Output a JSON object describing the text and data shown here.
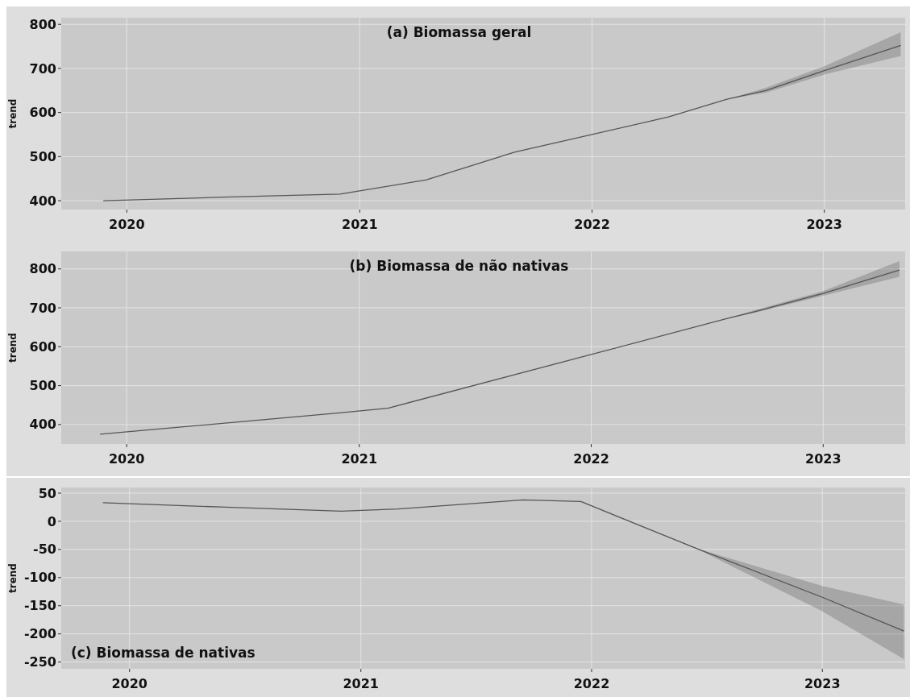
{
  "chart_data": [
    {
      "type": "line",
      "title": "(a) Biomassa geral",
      "ylabel": "trend",
      "x": [
        "2019-11-25",
        "2020-06-01",
        "2020-12-01",
        "2021-04-15",
        "2021-09-01",
        "2022-01-01",
        "2022-05-01",
        "2022-08-01",
        "2022-10-01",
        "2023-01-01",
        "2023-05-01"
      ],
      "series": [
        {
          "color": "#555555",
          "values": [
            400,
            408,
            415,
            447,
            510,
            550,
            590,
            630,
            650,
            695,
            752
          ],
          "lower": [
            null,
            null,
            null,
            null,
            null,
            null,
            null,
            630,
            645,
            686,
            728
          ],
          "upper": [
            null,
            null,
            null,
            null,
            null,
            null,
            null,
            630,
            656,
            705,
            782
          ]
        }
      ],
      "xlim": [
        "2019-09-20",
        "2023-05-08"
      ],
      "xticks": [
        {
          "value": "2020-01-01",
          "label": "2020"
        },
        {
          "value": "2021-01-01",
          "label": "2021"
        },
        {
          "value": "2022-01-01",
          "label": "2022"
        },
        {
          "value": "2023-01-01",
          "label": "2023"
        }
      ],
      "ylim": [
        380,
        815
      ],
      "yticks": [
        400,
        500,
        600,
        700,
        800
      ],
      "grid": true
    },
    {
      "type": "line",
      "title": "(b) Biomassa de não nativas",
      "ylabel": "trend",
      "x": [
        "2019-11-20",
        "2020-12-01",
        "2021-02-15",
        "2022-01-01",
        "2022-08-01",
        "2022-09-15",
        "2023-01-01",
        "2023-05-01"
      ],
      "series": [
        {
          "color": "#555555",
          "values": [
            375,
            430,
            442,
            580,
            672,
            690,
            737,
            797
          ],
          "lower": [
            null,
            null,
            null,
            null,
            672,
            687,
            731,
            780
          ],
          "upper": [
            null,
            null,
            null,
            null,
            672,
            694,
            743,
            820
          ]
        }
      ],
      "xlim": [
        "2019-09-20",
        "2023-05-10"
      ],
      "xticks": [
        {
          "value": "2020-01-01",
          "label": "2020"
        },
        {
          "value": "2021-01-01",
          "label": "2021"
        },
        {
          "value": "2022-01-01",
          "label": "2022"
        },
        {
          "value": "2023-01-01",
          "label": "2023"
        }
      ],
      "ylim": [
        350,
        845
      ],
      "yticks": [
        400,
        500,
        600,
        700,
        800
      ],
      "grid": true
    },
    {
      "type": "line",
      "title": "(c) Biomassa de nativas",
      "ylabel": "trend",
      "x": [
        "2019-11-20",
        "2020-06-01",
        "2020-12-01",
        "2021-03-01",
        "2021-09-15",
        "2021-12-15",
        "2022-06-15",
        "2023-01-01",
        "2023-05-10"
      ],
      "series": [
        {
          "color": "#555555",
          "values": [
            33,
            25,
            18,
            22,
            38,
            35,
            -48,
            -135,
            -195
          ],
          "lower": [
            null,
            null,
            null,
            null,
            null,
            null,
            -48,
            -160,
            -245
          ],
          "upper": [
            null,
            null,
            null,
            null,
            null,
            null,
            -48,
            -115,
            -148
          ]
        }
      ],
      "xlim": [
        "2019-09-15",
        "2023-05-12"
      ],
      "xticks": [
        {
          "value": "2020-01-01",
          "label": "2020"
        },
        {
          "value": "2021-01-01",
          "label": "2021"
        },
        {
          "value": "2022-01-01",
          "label": "2022"
        },
        {
          "value": "2023-01-01",
          "label": "2023"
        }
      ],
      "ylim": [
        -262,
        60
      ],
      "yticks": [
        50,
        0,
        -50,
        -100,
        -150,
        -200,
        -250
      ],
      "grid": true
    }
  ]
}
